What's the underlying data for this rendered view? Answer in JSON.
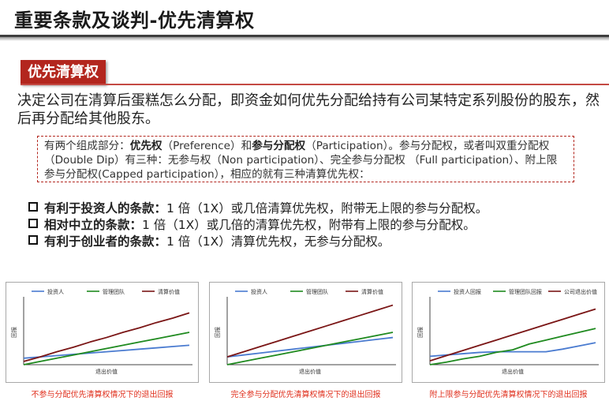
{
  "page": {
    "title": "重要条款及谈判-优先清算权",
    "section_tag": "优先清算权",
    "intro": "决定公司在清算后蛋糕怎么分配，即资金如何优先分配给持有公司某特定系列股份的股东，然后再分配给其他股东。",
    "note": {
      "p1": "有两个组成部分：",
      "b1": "优先权",
      "p2": "（Preference）和",
      "b2": "参与分配权",
      "p3": "（Participation）。参与分配权，或者叫双重分配权（Double Dip）有三种：无参与权（Non participation）、完全参与分配权 （Full participation）、附上限参与分配权(Capped participation），相应的就有三种清算优先权："
    },
    "bullets": [
      {
        "lead": "有利于投资人的条款：",
        "text": "1 倍（1X）或几倍清算优先权，附带无上限的参与分配权。"
      },
      {
        "lead": "相对中立的条款：",
        "text": "1 倍（1X）或几倍的清算优先权，附带有上限的参与分配权。"
      },
      {
        "lead": "有利于创业者的条款：",
        "text": "1 倍（1X）清算优先权，无参与分配权。"
      }
    ]
  },
  "colors": {
    "accent": "#b3261e",
    "investor": "#4a7bd0",
    "management": "#1f8a1f",
    "company": "#7a1515",
    "caption": "#e0301e"
  },
  "chart_data": [
    {
      "type": "line",
      "title": "",
      "caption": "不参与分配优先清算权情况下的退出回报",
      "xlabel": "退出价值",
      "ylabel": "回报",
      "legend_position": "top",
      "x": [
        0,
        1,
        2,
        3,
        4,
        5,
        6,
        7,
        8,
        9,
        10
      ],
      "series": [
        {
          "name": "投资人",
          "color": "#4a7bd0",
          "values": [
            1.0,
            1.2,
            1.4,
            1.6,
            1.8,
            2.0,
            2.2,
            2.4,
            2.6,
            2.8,
            3.0
          ]
        },
        {
          "name": "管理团队",
          "color": "#1f8a1f",
          "values": [
            0.0,
            0.5,
            1.0,
            1.5,
            2.0,
            2.5,
            3.0,
            3.5,
            4.0,
            4.5,
            5.0
          ]
        },
        {
          "name": "清算价值",
          "color": "#7a1515",
          "values": [
            0.5,
            1.2,
            2.0,
            2.7,
            3.5,
            4.2,
            5.0,
            5.7,
            6.5,
            7.2,
            8.0
          ]
        }
      ]
    },
    {
      "type": "line",
      "title": "",
      "caption": "完全参与分配优先清算权情况下的退出回报",
      "xlabel": "退出价值",
      "ylabel": "回报",
      "legend_position": "top",
      "x": [
        0,
        1,
        2,
        3,
        4,
        5,
        6,
        7,
        8,
        9,
        10
      ],
      "series": [
        {
          "name": "投资人",
          "color": "#4a7bd0",
          "values": [
            1.2,
            1.5,
            1.8,
            2.1,
            2.4,
            2.7,
            3.0,
            3.3,
            3.6,
            3.9,
            4.2
          ]
        },
        {
          "name": "管理团队",
          "color": "#1f8a1f",
          "values": [
            0.0,
            0.5,
            1.0,
            1.5,
            2.0,
            2.5,
            3.0,
            3.5,
            4.0,
            4.5,
            5.0
          ]
        },
        {
          "name": "清算价值",
          "color": "#7a1515",
          "values": [
            1.2,
            2.0,
            2.8,
            3.6,
            4.4,
            5.2,
            6.0,
            6.8,
            7.6,
            8.4,
            9.2
          ]
        }
      ]
    },
    {
      "type": "line",
      "title": "",
      "caption": "附上限参与分配优先清算权情况下的退出回报",
      "xlabel": "退出价值",
      "ylabel": "回报",
      "legend_position": "top",
      "x": [
        0,
        1,
        2,
        3,
        4,
        5,
        6,
        7,
        8,
        9,
        10
      ],
      "series": [
        {
          "name": "投资人回报",
          "color": "#4a7bd0",
          "values": [
            1.3,
            1.5,
            1.7,
            1.9,
            2.0,
            2.0,
            2.0,
            2.0,
            2.4,
            2.9,
            3.4
          ]
        },
        {
          "name": "管理团队回报",
          "color": "#1f8a1f",
          "values": [
            0.0,
            0.4,
            0.9,
            1.3,
            1.9,
            2.3,
            3.2,
            3.8,
            4.4,
            5.0,
            5.6
          ]
        },
        {
          "name": "公司退出价值",
          "color": "#7a1515",
          "values": [
            0.6,
            1.4,
            2.2,
            3.0,
            3.8,
            4.6,
            5.4,
            6.2,
            7.0,
            7.8,
            8.6
          ]
        }
      ]
    }
  ]
}
